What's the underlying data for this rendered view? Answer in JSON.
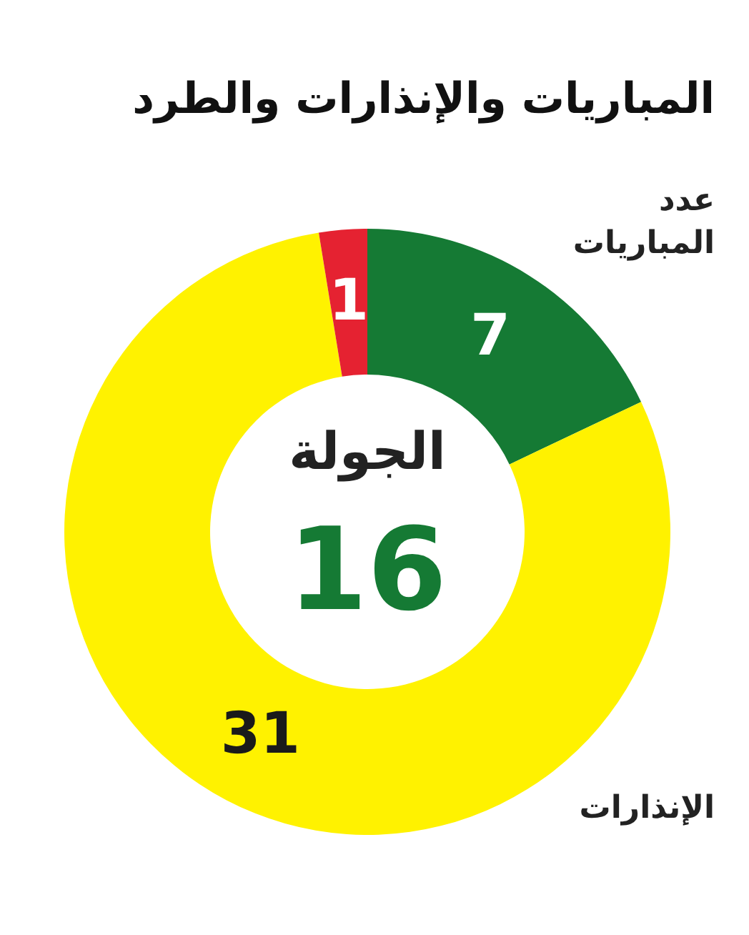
{
  "chart_data": {
    "type": "donut",
    "title": "المباريات والإنذارات والطرد",
    "categories": [
      "عدد المباريات",
      "الإنذارات",
      null
    ],
    "values": [
      7,
      31,
      1
    ],
    "colors": [
      "#157a34",
      "#fff200",
      "#e52231"
    ],
    "data_labels": true,
    "annotations": [
      "الجولة",
      "16"
    ]
  }
}
